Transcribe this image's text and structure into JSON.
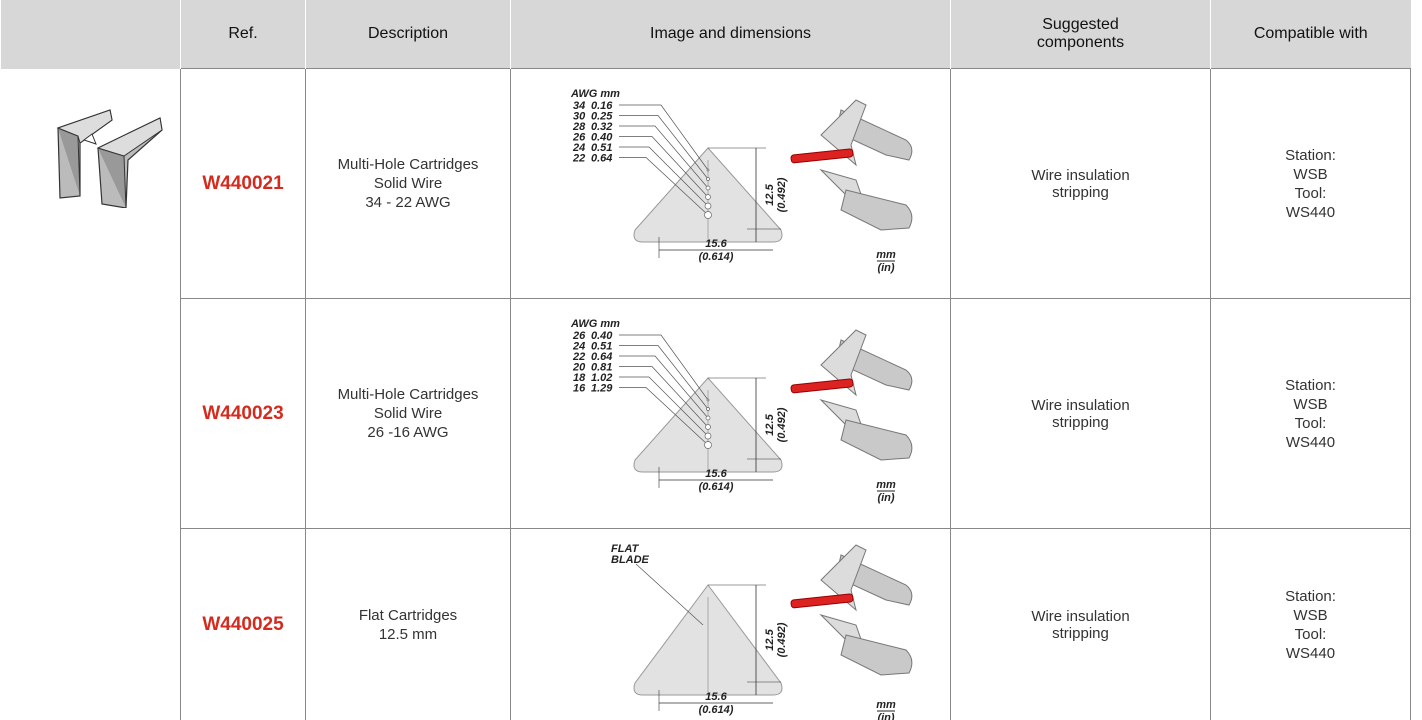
{
  "header": {
    "ref": "Ref.",
    "description": "Description",
    "image": "Image and dimensions",
    "suggested": "Suggested components",
    "compatible": "Compatible with"
  },
  "rows": [
    {
      "ref": "W440021",
      "description": [
        "Multi-Hole Cartridges",
        "Solid Wire",
        "34 - 22 AWG"
      ],
      "image": {
        "awg_header": "AWG mm",
        "gauges": [
          [
            "34",
            "0.16"
          ],
          [
            "30",
            "0.25"
          ],
          [
            "28",
            "0.32"
          ],
          [
            "26",
            "0.40"
          ],
          [
            "24",
            "0.51"
          ],
          [
            "22",
            "0.64"
          ]
        ],
        "height": "12.5",
        "height_in": "(0.492)",
        "width": "15.6",
        "width_in": "(0.614)",
        "unit": "mm",
        "unit_alt": "(in)"
      },
      "suggested": "Wire insulation stripping",
      "compatible": [
        "Station:",
        "WSB",
        "Tool:",
        "WS440"
      ]
    },
    {
      "ref": "W440023",
      "description": [
        "Multi-Hole Cartridges",
        "Solid Wire",
        "26 -16 AWG"
      ],
      "image": {
        "awg_header": "AWG mm",
        "gauges": [
          [
            "26",
            "0.40"
          ],
          [
            "24",
            "0.51"
          ],
          [
            "22",
            "0.64"
          ],
          [
            "20",
            "0.81"
          ],
          [
            "18",
            "1.02"
          ],
          [
            "16",
            "1.29"
          ]
        ],
        "height": "12.5",
        "height_in": "(0.492)",
        "width": "15.6",
        "width_in": "(0.614)",
        "unit": "mm",
        "unit_alt": "(in)"
      },
      "suggested": "Wire insulation stripping",
      "compatible": [
        "Station:",
        "WSB",
        "Tool:",
        "WS440"
      ]
    },
    {
      "ref": "W440025",
      "description": [
        "Flat Cartridges",
        "12.5 mm"
      ],
      "image": {
        "blade_label": [
          "FLAT",
          "BLADE"
        ],
        "height": "12.5",
        "height_in": "(0.492)",
        "width": "15.6",
        "width_in": "(0.614)",
        "unit": "mm",
        "unit_alt": "(in)"
      },
      "suggested": "Wire insulation stripping",
      "compatible": [
        "Station:",
        "WSB",
        "Tool:",
        "WS440"
      ]
    }
  ]
}
